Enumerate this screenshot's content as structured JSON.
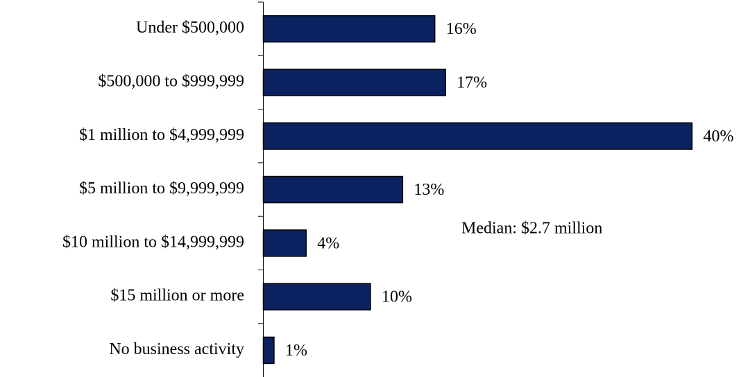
{
  "chart_data": {
    "type": "bar",
    "orientation": "horizontal",
    "categories": [
      "Under $500,000",
      "$500,000 to $999,999",
      "$1 million to $4,999,999",
      "$5 million to $9,999,999",
      "$10 million to $14,999,999",
      "$15 million or more",
      "No business activity"
    ],
    "values": [
      16,
      17,
      40,
      13,
      4,
      10,
      1
    ],
    "value_labels": [
      "16%",
      "17%",
      "40%",
      "13%",
      "4%",
      "10%",
      "1%"
    ],
    "color": "#0c2160",
    "annotations": [
      "Median: $2.7 million"
    ]
  }
}
